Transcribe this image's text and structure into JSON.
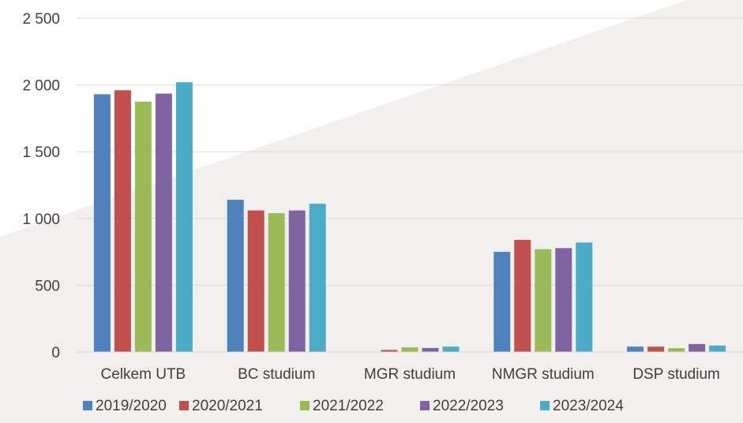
{
  "chart_data": {
    "type": "bar",
    "title": "",
    "xlabel": "",
    "ylabel": "",
    "ylim": [
      0,
      2500
    ],
    "yticks": [
      0,
      500,
      1000,
      1500,
      2000,
      2500
    ],
    "ytick_labels": [
      "0",
      "500",
      "1 000",
      "1 500",
      "2 000",
      "2 500"
    ],
    "grid": true,
    "legend_position": "bottom",
    "categories": [
      "Celkem UTB",
      "BC studium",
      "MGR studium",
      "NMGR studium",
      "DSP studium"
    ],
    "series": [
      {
        "name": "2019/2020",
        "color": "#4f81bd",
        "values": [
          1930,
          1140,
          0,
          750,
          40
        ]
      },
      {
        "name": "2020/2021",
        "color": "#c0504d",
        "values": [
          1960,
          1060,
          15,
          840,
          40
        ]
      },
      {
        "name": "2021/2022",
        "color": "#9bbb59",
        "values": [
          1875,
          1040,
          35,
          770,
          28
        ]
      },
      {
        "name": "2022/2023",
        "color": "#8064a2",
        "values": [
          1935,
          1060,
          30,
          778,
          60
        ]
      },
      {
        "name": "2023/2024",
        "color": "#4bacc6",
        "values": [
          2020,
          1110,
          40,
          820,
          48
        ]
      }
    ],
    "colors": {
      "background": "#f2f0ec",
      "background_light": "#ffffff",
      "grid": "#d9d9d9",
      "text": "#404040"
    }
  }
}
